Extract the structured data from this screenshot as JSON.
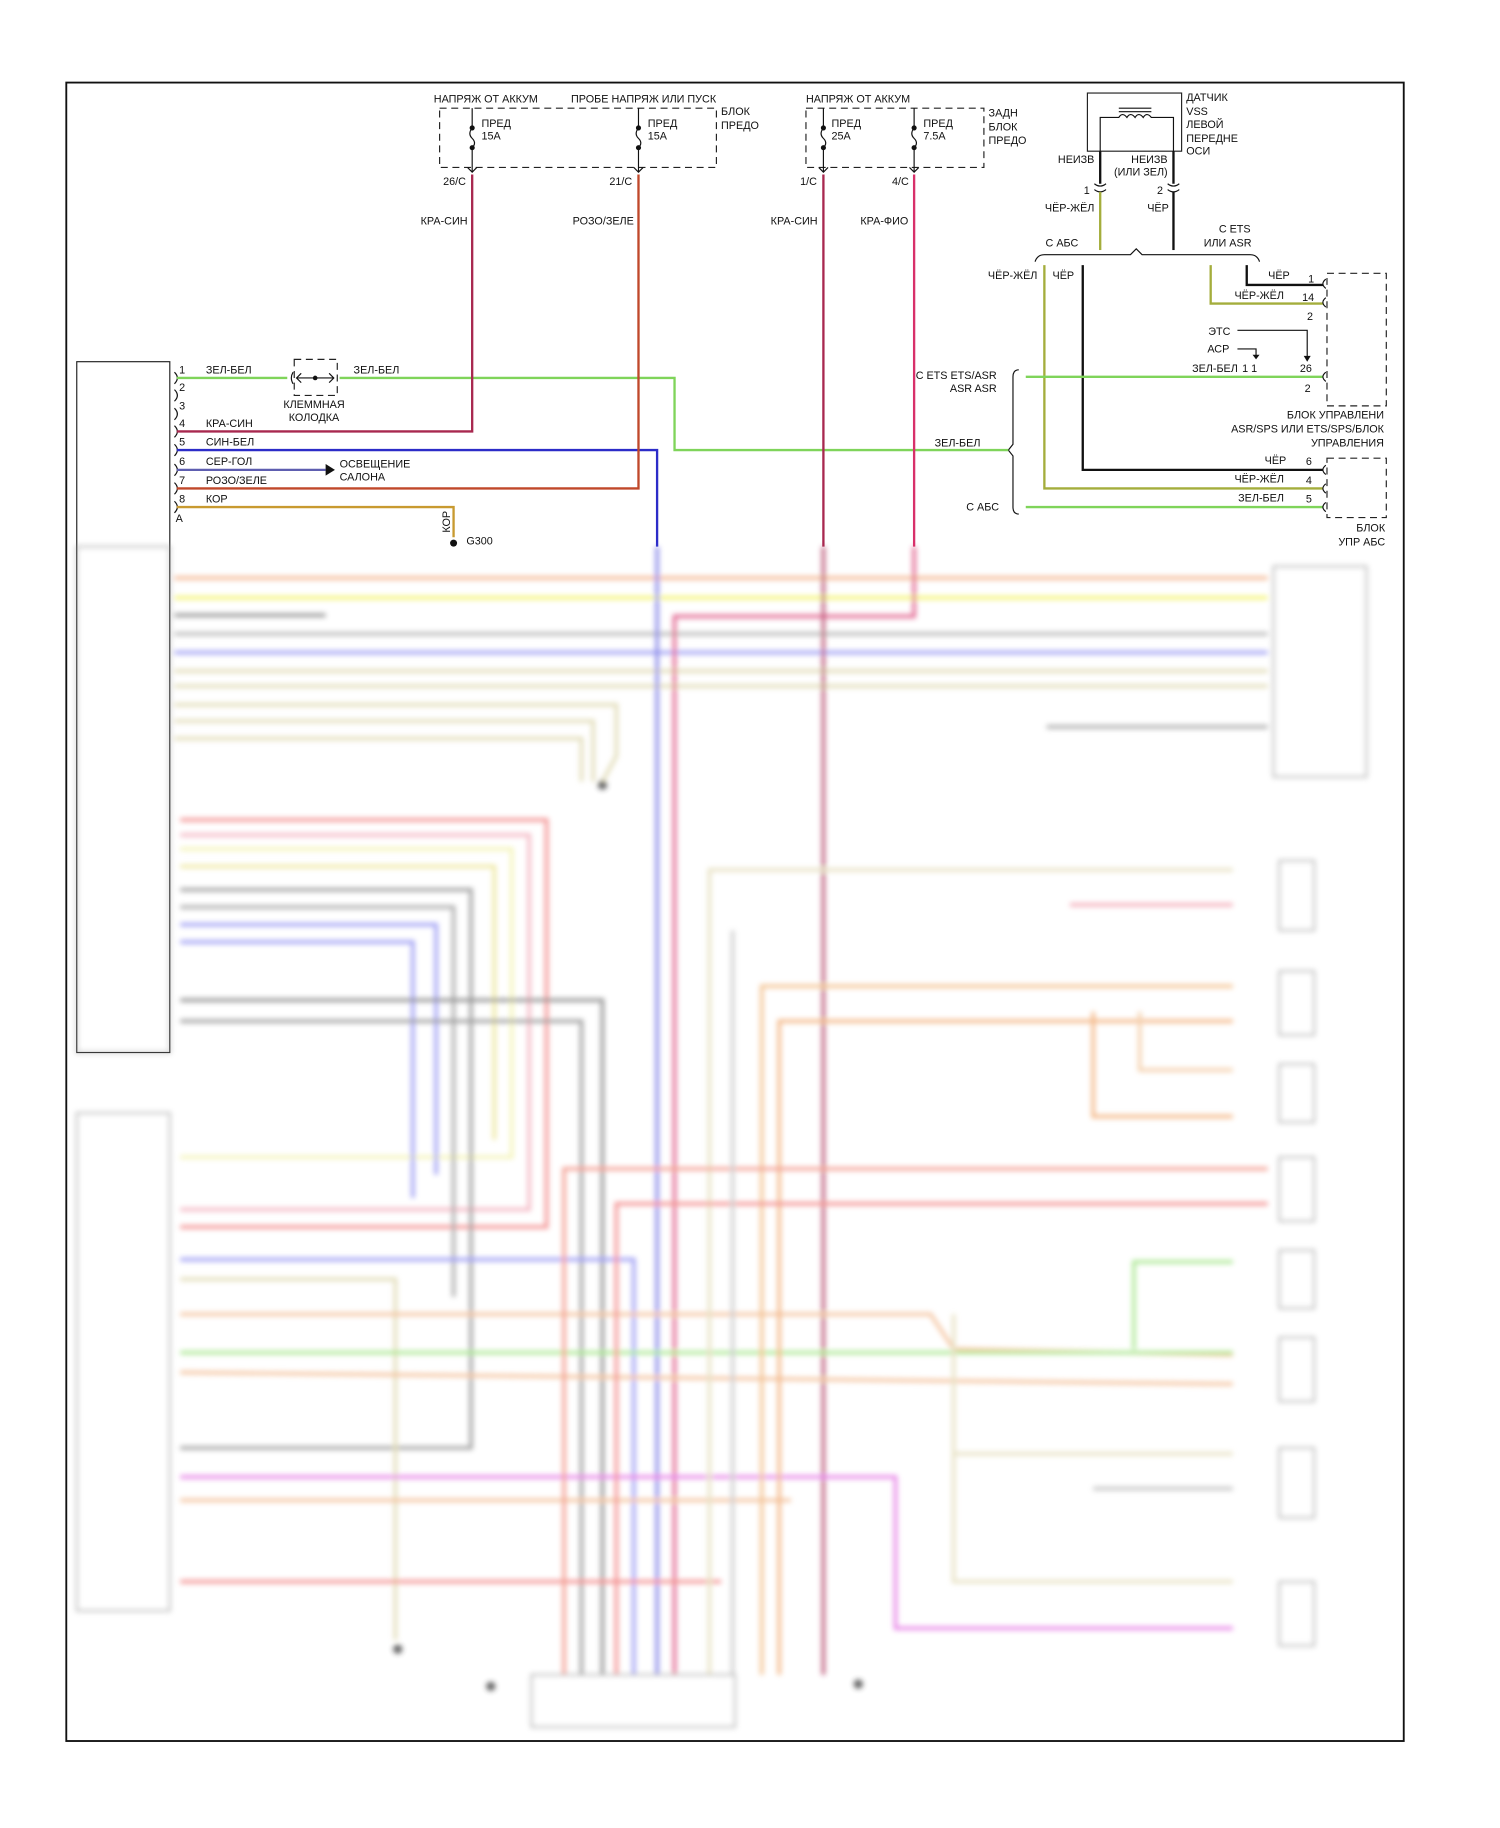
{
  "fuse_block_front": {
    "supply_left": "НАПРЯЖ ОТ АККУМ",
    "supply_right": "ПРОБЕ НАПРЯЖ ИЛИ ПУСК",
    "block_label": [
      "БЛОК",
      "ПРЕДО"
    ],
    "fuses": [
      {
        "name": "ПРЕД",
        "rating": "15A",
        "terminal": "26/C",
        "wire": "КРА-СИН"
      },
      {
        "name": "ПРЕД",
        "rating": "15A",
        "terminal": "21/C",
        "wire": "РОЗО/ЗЕЛЕ"
      }
    ]
  },
  "fuse_block_rear": {
    "supply": "НАПРЯЖ ОТ АККУМ",
    "block_label": [
      "ЗАДН",
      "БЛОК",
      "ПРЕДО"
    ],
    "fuses": [
      {
        "name": "ПРЕД",
        "rating": "25A",
        "terminal": "1/C",
        "wire": "КРА-СИН"
      },
      {
        "name": "ПРЕД",
        "rating": "7.5A",
        "terminal": "4/C",
        "wire": "КРА-ФИО"
      }
    ]
  },
  "vss_sensor": {
    "label": [
      "ДАТЧИК",
      "VSS",
      "ЛЕВОЙ",
      "ПЕРЕДНЕ",
      "ОСИ"
    ],
    "pin1_wire_top": "НЕИЗВ",
    "pin2_wire_top": [
      "НЕИЗВ",
      "(ИЛИ ЗЕЛ)"
    ],
    "pin1": "1",
    "pin2": "2",
    "pin1_wire": "ЧЁР-ЖЁЛ",
    "pin2_wire": "ЧЁР",
    "variant_abs": "С АБС",
    "variant_ets": [
      "С ETS",
      "ИЛИ ASR"
    ]
  },
  "right_side": {
    "abs_left_wire": "ЧЁР-ЖЁЛ",
    "abs_right_wire": "ЧЁР",
    "asr_module": {
      "label": [
        "БЛОК УПРАВЛЕНИ",
        "ASR/SPS ИЛИ ETS/SPS/БЛОК",
        "УПРАВЛЕНИЯ"
      ],
      "pins": [
        {
          "wire": "ЧЁР",
          "pin": "1"
        },
        {
          "wire": "ЧЁР-ЖЁЛ",
          "pin": "14"
        },
        {
          "wire": "",
          "pin": "2"
        },
        {
          "wire": "ЗЕЛ-БЕЛ",
          "pin": "26"
        },
        {
          "wire": "",
          "pin": "2"
        }
      ],
      "ets": "ЭТС",
      "acr": "АСР",
      "green_suffix": "1 1"
    },
    "abs_module": {
      "label": [
        "БЛОК",
        "УПР АБС"
      ],
      "pins": [
        {
          "wire": "ЧЁР",
          "pin": "6"
        },
        {
          "wire": "ЧЁР-ЖЁЛ",
          "pin": "4"
        },
        {
          "wire": "ЗЕЛ-БЕЛ",
          "pin": "5"
        }
      ]
    },
    "brace_ets": [
      "С ETS ETS/ASR",
      "ASR ASR"
    ],
    "brace_wire": "ЗЕЛ-БЕЛ",
    "brace_abs": "С АБС"
  },
  "left_connector": {
    "pins": [
      {
        "num": "1",
        "wire": "ЗЕЛ-БЕЛ"
      },
      {
        "num": "2",
        "wire": ""
      },
      {
        "num": "3",
        "wire": ""
      },
      {
        "num": "4",
        "wire": "КРА-СИН"
      },
      {
        "num": "5",
        "wire": "СИН-БЕЛ"
      },
      {
        "num": "6",
        "wire": "СЕР-ГОЛ"
      },
      {
        "num": "7",
        "wire": "РОЗО/ЗЕЛЕ"
      },
      {
        "num": "8",
        "wire": "КОР"
      }
    ],
    "connector_id": "A",
    "clamp_label": [
      "КЛЕММНАЯ",
      "КОЛОДКА"
    ],
    "clamp_out_wire": "ЗЕЛ-БЕЛ",
    "lighting": [
      "ОСВЕЩЕНИЕ",
      "САЛОНА"
    ],
    "ground_wire": "КОР",
    "ground": "G300"
  },
  "wire_colors": {
    "green_white": "#7fd45a",
    "red_blue": "#a8284f",
    "pink_green": "#c0482a",
    "blue_white": "#2c2cc8",
    "gray_blue": "#5e5eb0",
    "brown": "#c89a30",
    "red_violet": "#d8306a",
    "black_yellow": "#a4ad3c",
    "black": "#111111"
  }
}
